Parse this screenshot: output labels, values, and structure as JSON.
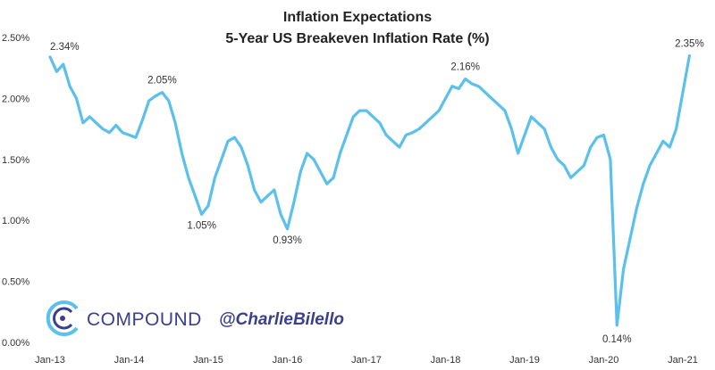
{
  "chart_data": {
    "type": "line",
    "title": "Inflation Expectations",
    "subtitle": "5-Year US Breakeven Inflation Rate (%)",
    "xlabel": "",
    "ylabel": "",
    "x_range": [
      "2013-01",
      "2021-01"
    ],
    "ylim": [
      0,
      2.5
    ],
    "y_ticks": [
      0,
      0.5,
      1.0,
      1.5,
      2.0,
      2.5
    ],
    "y_tick_labels": [
      "0.00%",
      "0.50%",
      "1.00%",
      "1.50%",
      "2.00%",
      "2.50%"
    ],
    "x_ticks": [
      "2013-01",
      "2014-01",
      "2015-01",
      "2016-01",
      "2017-01",
      "2018-01",
      "2019-01",
      "2020-01",
      "2021-01"
    ],
    "x_tick_labels": [
      "Jan-13",
      "Jan-14",
      "Jan-15",
      "Jan-16",
      "Jan-17",
      "Jan-18",
      "Jan-19",
      "Jan-20",
      "Jan-21"
    ],
    "grid": false,
    "line_color": "#5bc0eb",
    "series": [
      {
        "name": "",
        "x": [
          "2013-01",
          "2013-02",
          "2013-03",
          "2013-04",
          "2013-05",
          "2013-06",
          "2013-07",
          "2013-08",
          "2013-09",
          "2013-10",
          "2013-11",
          "2013-12",
          "2014-01",
          "2014-02",
          "2014-03",
          "2014-04",
          "2014-05",
          "2014-06",
          "2014-07",
          "2014-08",
          "2014-09",
          "2014-10",
          "2014-11",
          "2014-12",
          "2015-01",
          "2015-02",
          "2015-03",
          "2015-04",
          "2015-05",
          "2015-06",
          "2015-07",
          "2015-08",
          "2015-09",
          "2015-10",
          "2015-11",
          "2015-12",
          "2016-01",
          "2016-02",
          "2016-03",
          "2016-04",
          "2016-05",
          "2016-06",
          "2016-07",
          "2016-08",
          "2016-09",
          "2016-10",
          "2016-11",
          "2016-12",
          "2017-01",
          "2017-02",
          "2017-03",
          "2017-04",
          "2017-05",
          "2017-06",
          "2017-07",
          "2017-08",
          "2017-09",
          "2017-10",
          "2017-11",
          "2017-12",
          "2018-01",
          "2018-02",
          "2018-03",
          "2018-04",
          "2018-05",
          "2018-06",
          "2018-07",
          "2018-08",
          "2018-09",
          "2018-10",
          "2018-11",
          "2018-12",
          "2019-01",
          "2019-02",
          "2019-03",
          "2019-04",
          "2019-05",
          "2019-06",
          "2019-07",
          "2019-08",
          "2019-09",
          "2019-10",
          "2019-11",
          "2019-12",
          "2020-01",
          "2020-02",
          "2020-03",
          "2020-04",
          "2020-05",
          "2020-06",
          "2020-07",
          "2020-08",
          "2020-09",
          "2020-10",
          "2020-11",
          "2020-12",
          "2021-01",
          "2021-02"
        ],
        "values": [
          2.34,
          2.22,
          2.28,
          2.1,
          2.0,
          1.8,
          1.85,
          1.8,
          1.75,
          1.72,
          1.78,
          1.72,
          1.7,
          1.68,
          1.82,
          1.98,
          2.02,
          2.05,
          1.98,
          1.8,
          1.55,
          1.35,
          1.2,
          1.05,
          1.12,
          1.35,
          1.5,
          1.65,
          1.68,
          1.6,
          1.45,
          1.25,
          1.15,
          1.2,
          1.25,
          1.05,
          0.93,
          1.15,
          1.4,
          1.55,
          1.5,
          1.4,
          1.3,
          1.35,
          1.55,
          1.7,
          1.85,
          1.9,
          1.9,
          1.85,
          1.8,
          1.7,
          1.65,
          1.6,
          1.7,
          1.72,
          1.75,
          1.8,
          1.85,
          1.9,
          2.0,
          2.1,
          2.08,
          2.16,
          2.12,
          2.1,
          2.05,
          2.0,
          1.95,
          1.9,
          1.75,
          1.55,
          1.7,
          1.85,
          1.8,
          1.75,
          1.6,
          1.5,
          1.45,
          1.35,
          1.4,
          1.45,
          1.6,
          1.68,
          1.7,
          1.5,
          0.14,
          0.6,
          0.85,
          1.1,
          1.3,
          1.45,
          1.55,
          1.65,
          1.6,
          1.75,
          2.05,
          2.35
        ]
      }
    ],
    "annotations": [
      {
        "text": "2.34%",
        "x": "2013-01",
        "y": 2.34
      },
      {
        "text": "2.05%",
        "x": "2014-06",
        "y": 2.05
      },
      {
        "text": "1.05%",
        "x": "2014-12",
        "y": 1.05
      },
      {
        "text": "0.93%",
        "x": "2016-01",
        "y": 0.93
      },
      {
        "text": "2.16%",
        "x": "2018-04",
        "y": 2.16
      },
      {
        "text": "0.14%",
        "x": "2020-03",
        "y": 0.14
      },
      {
        "text": "2.35%",
        "x": "2021-02",
        "y": 2.35
      }
    ]
  },
  "watermark": {
    "brand": "COMPOUND",
    "handle": "@CharlieBilello",
    "logo_icon": "compound-c-logo-icon",
    "color": "#3a3f8f"
  }
}
